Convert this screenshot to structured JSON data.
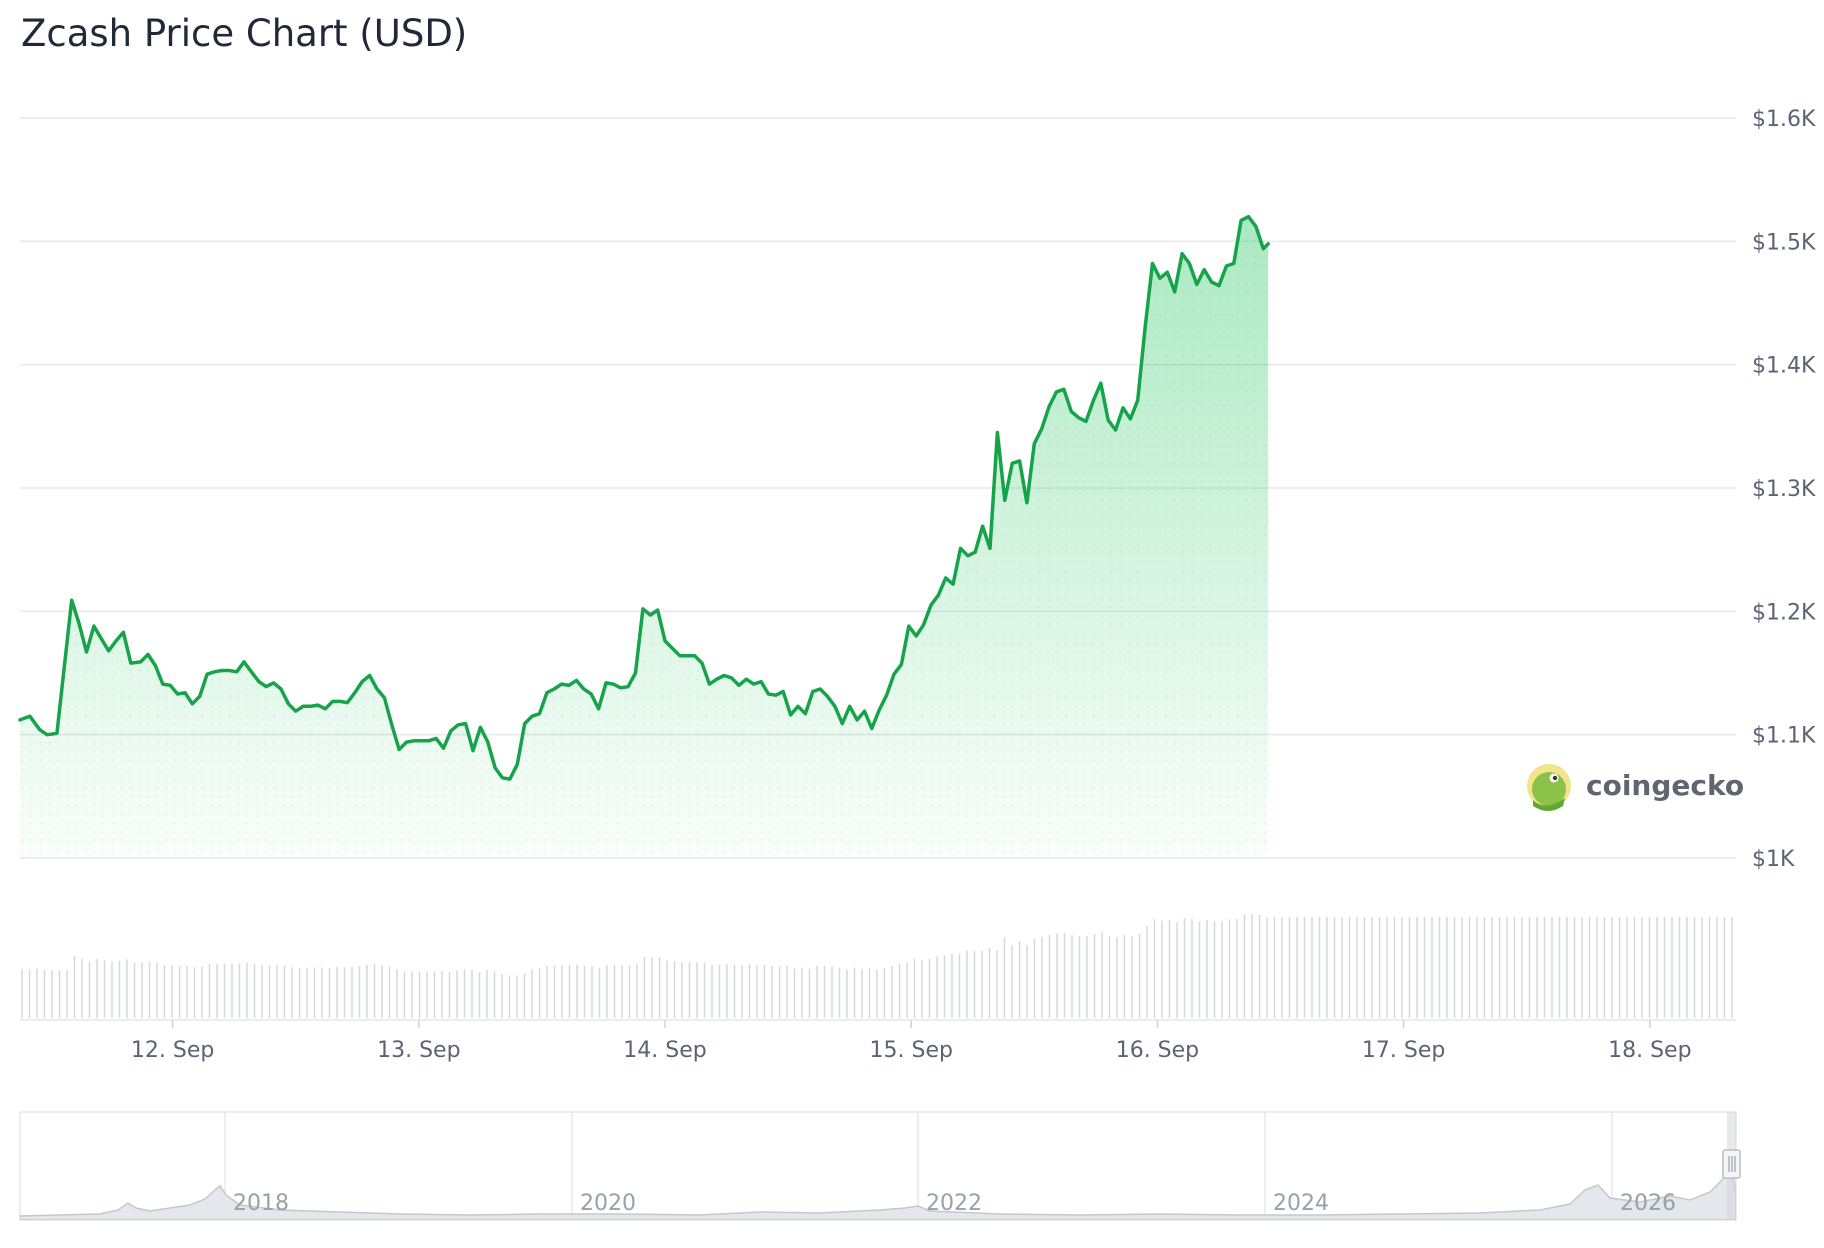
{
  "title": "Zcash Price Chart (USD)",
  "watermark": {
    "text": "coingecko",
    "icon": "gecko-logo-icon"
  },
  "colors": {
    "line": "#16a34a",
    "fill": "#22c55e",
    "grid": "#e6e8eb",
    "volume": "#d4d7dc",
    "navigator_line": "#c4c8ce"
  },
  "chart_data": {
    "type": "area",
    "title": "Zcash Price Chart (USD)",
    "currency": "USD",
    "xlabel": "",
    "ylabel": "",
    "ylim": [
      1000,
      1600
    ],
    "y_ticks": [
      {
        "value": 1000,
        "label": "$1K"
      },
      {
        "value": 1100,
        "label": "$1.1K"
      },
      {
        "value": 1200,
        "label": "$1.2K"
      },
      {
        "value": 1300,
        "label": "$1.3K"
      },
      {
        "value": 1400,
        "label": "$1.4K"
      },
      {
        "value": 1500,
        "label": "$1.5K"
      },
      {
        "value": 1600,
        "label": "$1.6K"
      }
    ],
    "xlim_days": [
      11.38,
      18.35
    ],
    "x_ticks": [
      {
        "day": 12,
        "label": "12. Sep"
      },
      {
        "day": 13,
        "label": "13. Sep"
      },
      {
        "day": 14,
        "label": "14. Sep"
      },
      {
        "day": 15,
        "label": "15. Sep"
      },
      {
        "day": 16,
        "label": "16. Sep"
      },
      {
        "day": 17,
        "label": "17. Sep"
      },
      {
        "day": 18,
        "label": "18. Sep"
      }
    ],
    "grid": true,
    "series": [
      {
        "points": [
          [
            11.38,
            1112
          ],
          [
            11.42,
            1115
          ],
          [
            11.46,
            1104
          ],
          [
            11.49,
            1100
          ],
          [
            11.53,
            1101
          ],
          [
            11.59,
            1209
          ],
          [
            11.62,
            1190
          ],
          [
            11.65,
            1167
          ],
          [
            11.68,
            1188
          ],
          [
            11.71,
            1178
          ],
          [
            11.74,
            1168
          ],
          [
            11.77,
            1176
          ],
          [
            11.8,
            1183
          ],
          [
            11.83,
            1158
          ],
          [
            11.87,
            1159
          ],
          [
            11.9,
            1165
          ],
          [
            11.93,
            1156
          ],
          [
            11.96,
            1141
          ],
          [
            11.99,
            1140
          ],
          [
            12.02,
            1133
          ],
          [
            12.05,
            1134
          ],
          [
            12.08,
            1125
          ],
          [
            12.11,
            1131
          ],
          [
            12.14,
            1149
          ],
          [
            12.17,
            1151
          ],
          [
            12.2,
            1152
          ],
          [
            12.23,
            1152
          ],
          [
            12.26,
            1151
          ],
          [
            12.29,
            1159
          ],
          [
            12.32,
            1151
          ],
          [
            12.35,
            1143
          ],
          [
            12.38,
            1139
          ],
          [
            12.41,
            1142
          ],
          [
            12.44,
            1137
          ],
          [
            12.47,
            1125
          ],
          [
            12.5,
            1119
          ],
          [
            12.53,
            1123
          ],
          [
            12.56,
            1123
          ],
          [
            12.59,
            1124
          ],
          [
            12.62,
            1121
          ],
          [
            12.65,
            1127
          ],
          [
            12.68,
            1127
          ],
          [
            12.71,
            1126
          ],
          [
            12.74,
            1134
          ],
          [
            12.77,
            1143
          ],
          [
            12.8,
            1148
          ],
          [
            12.83,
            1137
          ],
          [
            12.86,
            1130
          ],
          [
            12.89,
            1108
          ],
          [
            12.92,
            1088
          ],
          [
            12.95,
            1094
          ],
          [
            12.98,
            1095
          ],
          [
            13.01,
            1095
          ],
          [
            13.04,
            1095
          ],
          [
            13.07,
            1097
          ],
          [
            13.1,
            1089
          ],
          [
            13.13,
            1103
          ],
          [
            13.16,
            1108
          ],
          [
            13.19,
            1109
          ],
          [
            13.22,
            1087
          ],
          [
            13.25,
            1106
          ],
          [
            13.28,
            1094
          ],
          [
            13.31,
            1073
          ],
          [
            13.34,
            1065
          ],
          [
            13.37,
            1064
          ],
          [
            13.4,
            1076
          ],
          [
            13.43,
            1109
          ],
          [
            13.46,
            1115
          ],
          [
            13.49,
            1117
          ],
          [
            13.52,
            1134
          ],
          [
            13.55,
            1137
          ],
          [
            13.58,
            1141
          ],
          [
            13.61,
            1140
          ],
          [
            13.64,
            1144
          ],
          [
            13.67,
            1137
          ],
          [
            13.7,
            1133
          ],
          [
            13.73,
            1121
          ],
          [
            13.76,
            1142
          ],
          [
            13.79,
            1141
          ],
          [
            13.82,
            1138
          ],
          [
            13.85,
            1139
          ],
          [
            13.88,
            1150
          ],
          [
            13.91,
            1202
          ],
          [
            13.94,
            1197
          ],
          [
            13.97,
            1201
          ],
          [
            14.0,
            1176
          ],
          [
            14.03,
            1170
          ],
          [
            14.06,
            1164
          ],
          [
            14.09,
            1164
          ],
          [
            14.12,
            1164
          ],
          [
            14.15,
            1158
          ],
          [
            14.18,
            1141
          ],
          [
            14.21,
            1145
          ],
          [
            14.24,
            1148
          ],
          [
            14.27,
            1146
          ],
          [
            14.3,
            1140
          ],
          [
            14.33,
            1145
          ],
          [
            14.36,
            1141
          ],
          [
            14.39,
            1143
          ],
          [
            14.42,
            1133
          ],
          [
            14.45,
            1132
          ],
          [
            14.48,
            1135
          ],
          [
            14.51,
            1116
          ],
          [
            14.54,
            1123
          ],
          [
            14.57,
            1117
          ],
          [
            14.6,
            1135
          ],
          [
            14.63,
            1137
          ],
          [
            14.66,
            1131
          ],
          [
            14.69,
            1123
          ],
          [
            14.72,
            1109
          ],
          [
            14.75,
            1123
          ],
          [
            14.78,
            1112
          ],
          [
            14.81,
            1119
          ],
          [
            14.84,
            1105
          ],
          [
            14.87,
            1120
          ],
          [
            14.9,
            1132
          ],
          [
            14.93,
            1149
          ],
          [
            14.96,
            1157
          ],
          [
            14.99,
            1188
          ],
          [
            15.02,
            1180
          ],
          [
            15.05,
            1189
          ],
          [
            15.08,
            1205
          ],
          [
            15.11,
            1213
          ],
          [
            15.14,
            1227
          ],
          [
            15.17,
            1222
          ],
          [
            15.2,
            1251
          ],
          [
            15.23,
            1245
          ],
          [
            15.26,
            1248
          ],
          [
            15.29,
            1269
          ],
          [
            15.32,
            1251
          ],
          [
            15.35,
            1345
          ],
          [
            15.38,
            1290
          ],
          [
            15.41,
            1320
          ],
          [
            15.44,
            1322
          ],
          [
            15.47,
            1288
          ],
          [
            15.5,
            1336
          ],
          [
            15.53,
            1348
          ],
          [
            15.56,
            1366
          ],
          [
            15.59,
            1378
          ],
          [
            15.62,
            1380
          ],
          [
            15.65,
            1362
          ],
          [
            15.68,
            1357
          ],
          [
            15.71,
            1354
          ],
          [
            15.74,
            1371
          ],
          [
            15.77,
            1385
          ],
          [
            15.8,
            1355
          ],
          [
            15.83,
            1347
          ],
          [
            15.86,
            1365
          ],
          [
            15.89,
            1356
          ],
          [
            15.92,
            1371
          ],
          [
            15.95,
            1430
          ],
          [
            15.98,
            1482
          ],
          [
            16.01,
            1470
          ],
          [
            16.04,
            1475
          ],
          [
            16.07,
            1459
          ],
          [
            16.1,
            1490
          ],
          [
            16.13,
            1482
          ],
          [
            16.16,
            1465
          ],
          [
            16.19,
            1477
          ],
          [
            16.22,
            1467
          ],
          [
            16.25,
            1464
          ],
          [
            16.28,
            1480
          ],
          [
            16.31,
            1482
          ],
          [
            16.34,
            1517
          ],
          [
            16.37,
            1520
          ],
          [
            16.4,
            1512
          ],
          [
            16.43,
            1494
          ],
          [
            16.45,
            1498
          ]
        ]
      }
    ],
    "navigator": {
      "x_ticks": [
        "2018",
        "2020",
        "2022",
        "2024",
        "2026"
      ]
    }
  }
}
